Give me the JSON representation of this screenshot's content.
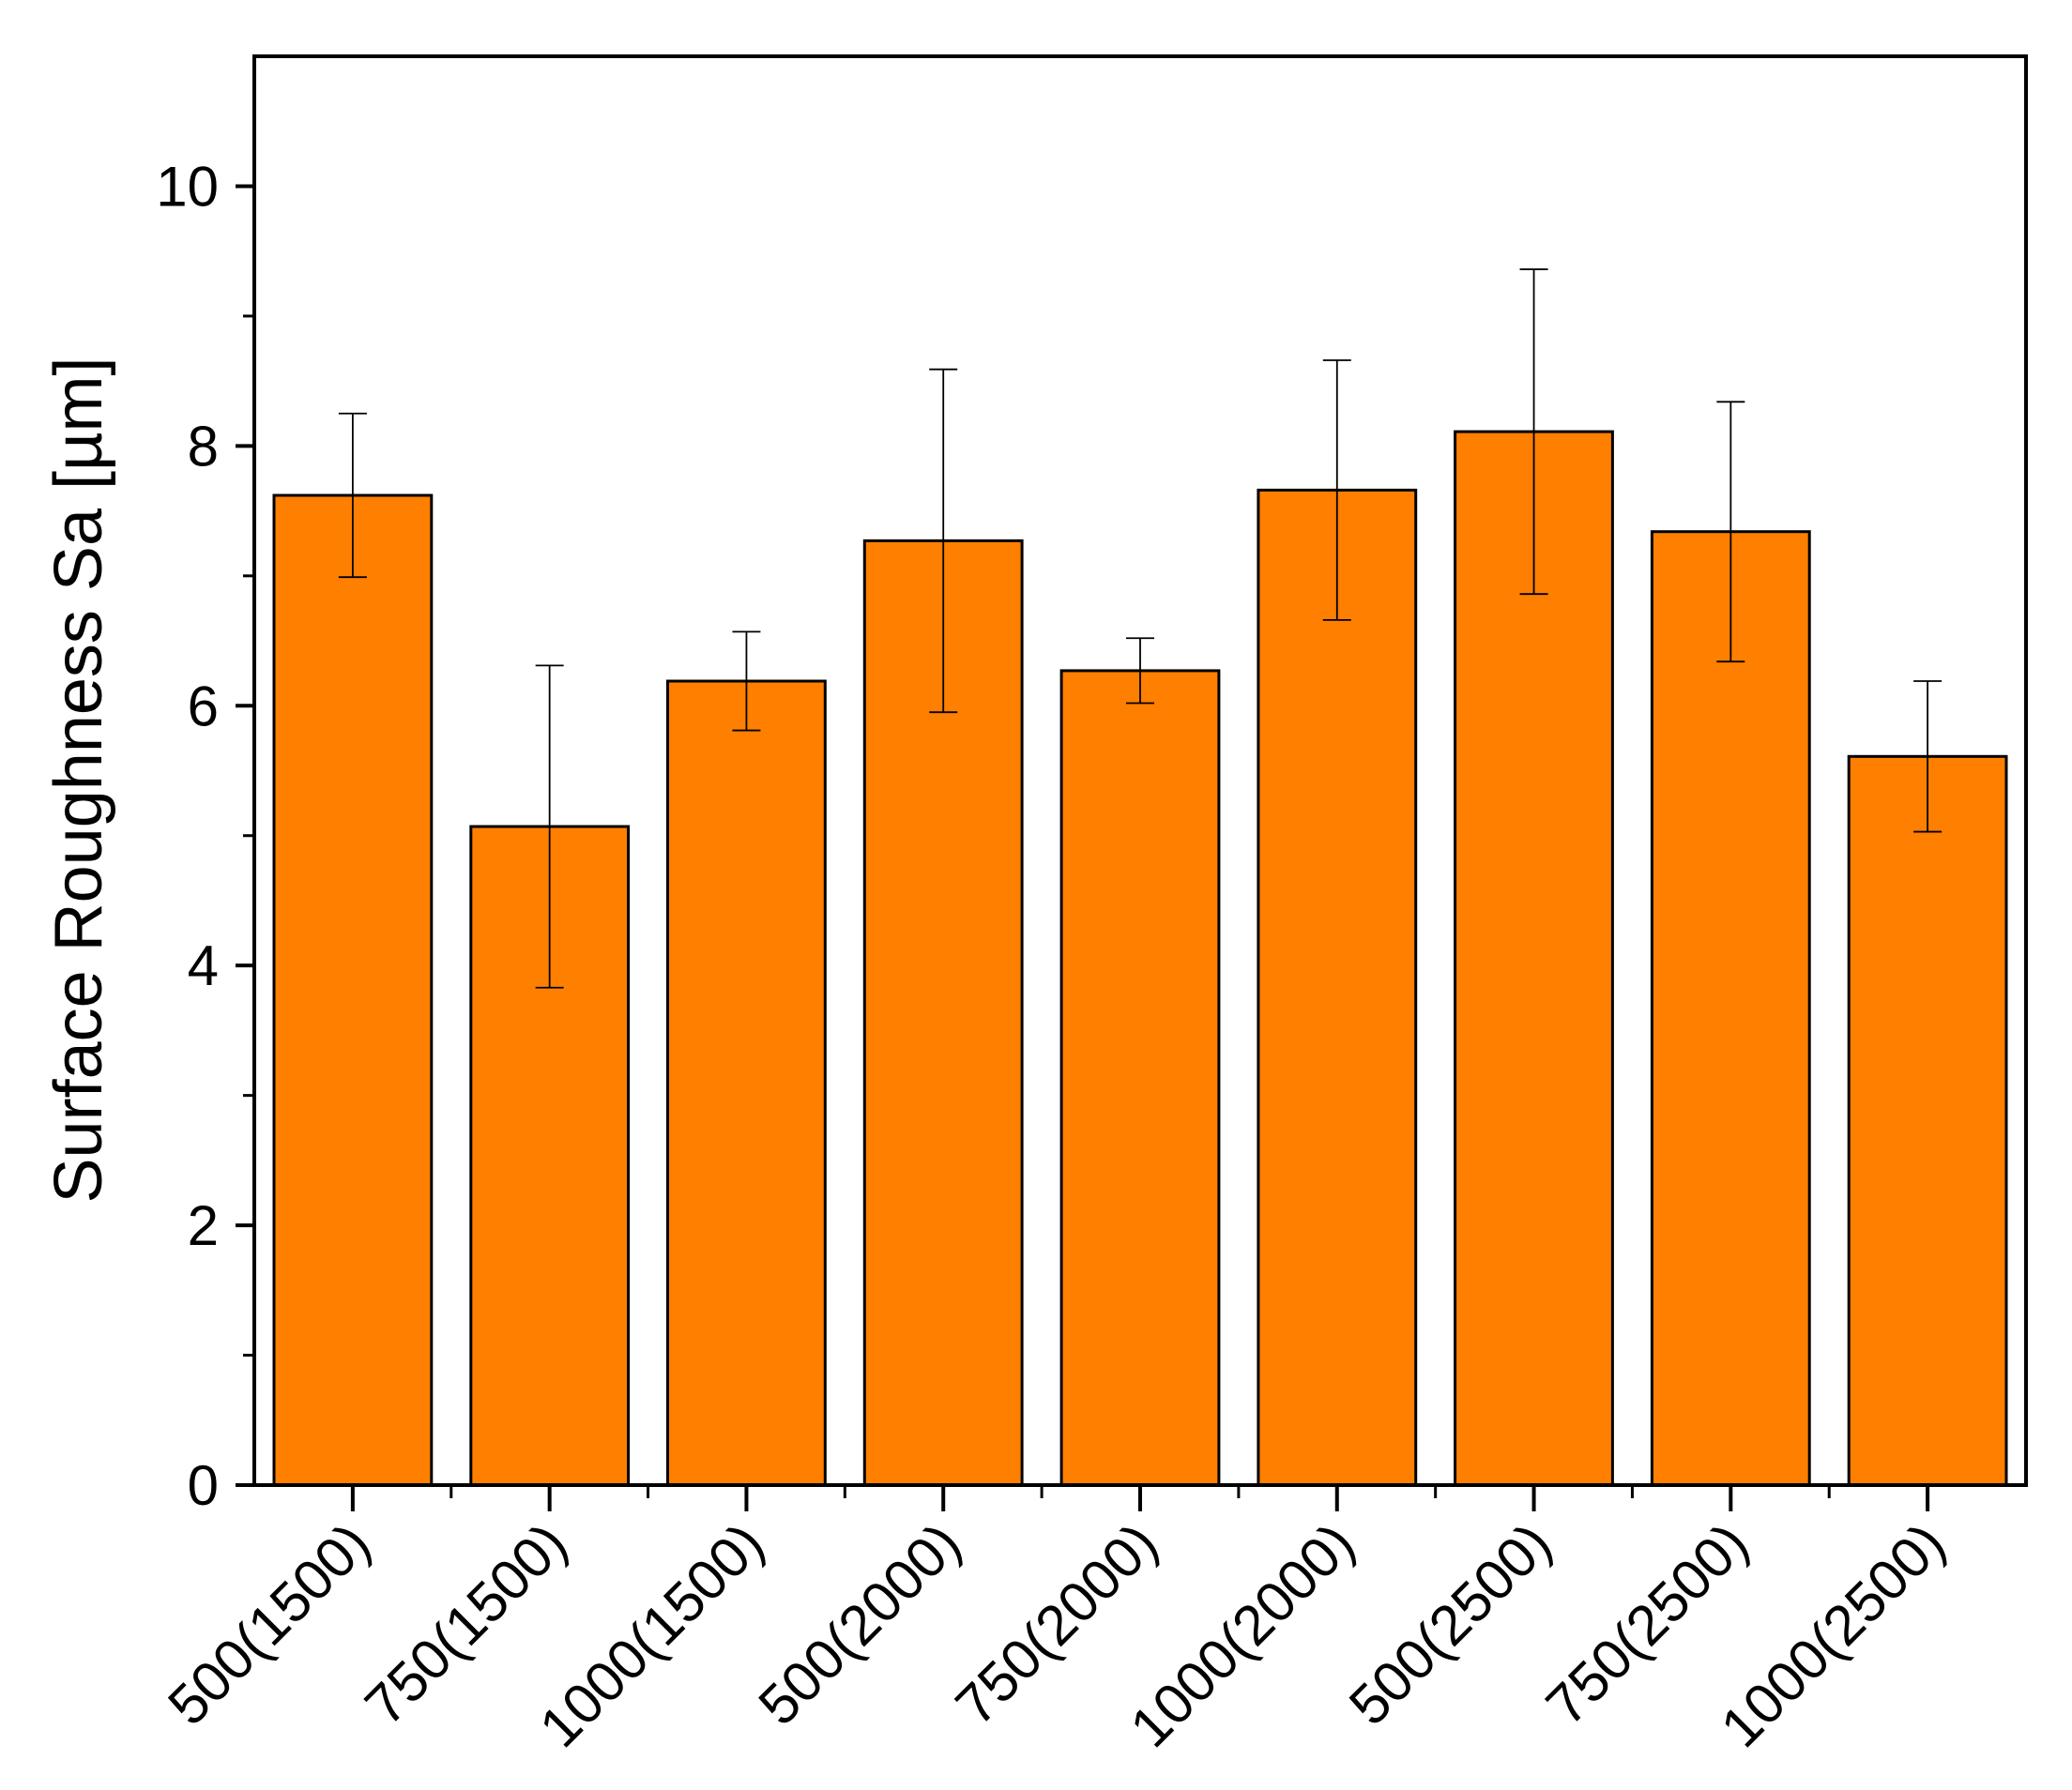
{
  "chart_data": {
    "type": "bar",
    "title": "",
    "xlabel": "",
    "ylabel": "Surface Roughness Sa [µm]",
    "categories": [
      "500(1500)",
      "750(1500)",
      "1000(1500)",
      "500(2000)",
      "750(2000)",
      "1000(2000)",
      "500(2500)",
      "750(2500)",
      "1000(2500)"
    ],
    "values": [
      7.62,
      5.07,
      6.19,
      7.27,
      6.27,
      7.66,
      8.11,
      7.34,
      5.61
    ],
    "errors": [
      0.63,
      1.24,
      0.38,
      1.32,
      0.25,
      1.0,
      1.25,
      1.0,
      0.58
    ],
    "ylim": [
      0,
      11
    ],
    "yticks": [
      0,
      2,
      4,
      6,
      8,
      10
    ],
    "ytick_labels": [
      "0",
      "2",
      "4",
      "6",
      "8",
      "10"
    ],
    "grid": false,
    "colors": {
      "bar_fill": "#FF7F00",
      "bar_edge": "#000000",
      "axis": "#000000"
    }
  }
}
